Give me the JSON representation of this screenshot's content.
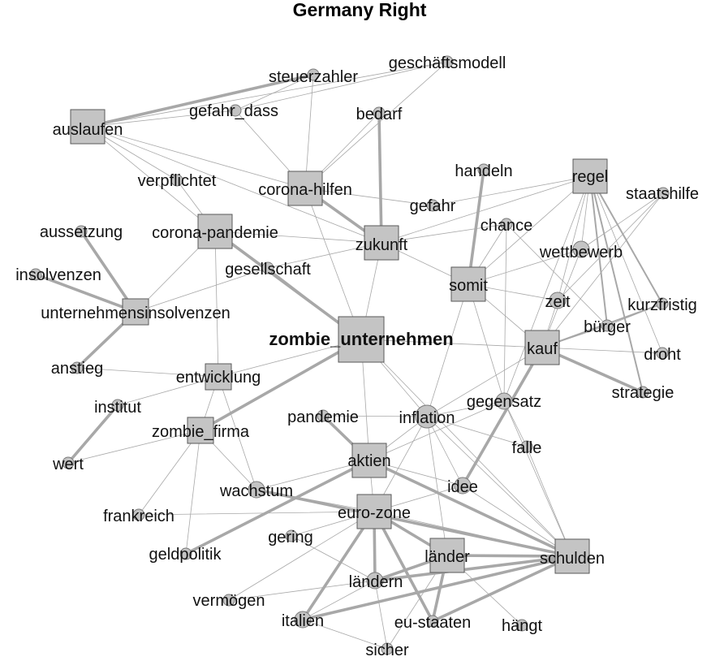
{
  "title": "Germany Right",
  "nodes": [
    {
      "id": "zombie_unternehmen",
      "label": "zombie_unternehmen",
      "shape": "square",
      "weight": 3,
      "emphasis": true
    },
    {
      "id": "auslaufen",
      "label": "auslaufen",
      "shape": "square",
      "weight": 2
    },
    {
      "id": "corona-hilfen",
      "label": "corona-hilfen",
      "shape": "square",
      "weight": 2
    },
    {
      "id": "corona-pandemie",
      "label": "corona-pandemie",
      "shape": "square",
      "weight": 2
    },
    {
      "id": "zukunft",
      "label": "zukunft",
      "shape": "square",
      "weight": 2
    },
    {
      "id": "somit",
      "label": "somit",
      "shape": "square",
      "weight": 2
    },
    {
      "id": "regel",
      "label": "regel",
      "shape": "square",
      "weight": 2
    },
    {
      "id": "kauf",
      "label": "kauf",
      "shape": "square",
      "weight": 2
    },
    {
      "id": "entwicklung",
      "label": "entwicklung",
      "shape": "square",
      "weight": 1
    },
    {
      "id": "zombie_firma",
      "label": "zombie_firma",
      "shape": "square",
      "weight": 1
    },
    {
      "id": "unternehmensinsolvenzen",
      "label": "unternehmensinsolvenzen",
      "shape": "square",
      "weight": 1
    },
    {
      "id": "aktien",
      "label": "aktien",
      "shape": "square",
      "weight": 2
    },
    {
      "id": "euro-zone",
      "label": "euro-zone",
      "shape": "square",
      "weight": 2
    },
    {
      "id": "länder",
      "label": "länder",
      "shape": "square",
      "weight": 2
    },
    {
      "id": "schulden",
      "label": "schulden",
      "shape": "square",
      "weight": 2
    },
    {
      "id": "steuerzahler",
      "label": "steuerzahler",
      "shape": "circle",
      "weight": 1
    },
    {
      "id": "geschäftsmodell",
      "label": "geschäftsmodell",
      "shape": "circle",
      "weight": 1
    },
    {
      "id": "gefahr_dass",
      "label": "gefahr_dass",
      "shape": "circle",
      "weight": 1
    },
    {
      "id": "bedarf",
      "label": "bedarf",
      "shape": "circle",
      "weight": 1
    },
    {
      "id": "verpflichtet",
      "label": "verpflichtet",
      "shape": "circle",
      "weight": 1
    },
    {
      "id": "handeln",
      "label": "handeln",
      "shape": "circle",
      "weight": 1
    },
    {
      "id": "gefahr",
      "label": "gefahr",
      "shape": "circle",
      "weight": 1
    },
    {
      "id": "staatshilfe",
      "label": "staatshilfe",
      "shape": "circle",
      "weight": 1
    },
    {
      "id": "aussetzung",
      "label": "aussetzung",
      "shape": "circle",
      "weight": 1
    },
    {
      "id": "chance",
      "label": "chance",
      "shape": "circle",
      "weight": 1
    },
    {
      "id": "wettbewerb",
      "label": "wettbewerb",
      "shape": "circle",
      "weight": 2
    },
    {
      "id": "insolvenzen",
      "label": "insolvenzen",
      "shape": "circle",
      "weight": 1
    },
    {
      "id": "gesellschaft",
      "label": "gesellschaft",
      "shape": "circle",
      "weight": 1
    },
    {
      "id": "zeit",
      "label": "zeit",
      "shape": "circle",
      "weight": 2
    },
    {
      "id": "kurzfristig",
      "label": "kurzfristig",
      "shape": "circle",
      "weight": 1
    },
    {
      "id": "bürger",
      "label": "bürger",
      "shape": "circle",
      "weight": 1
    },
    {
      "id": "droht",
      "label": "droht",
      "shape": "circle",
      "weight": 1
    },
    {
      "id": "anstieg",
      "label": "anstieg",
      "shape": "circle",
      "weight": 1
    },
    {
      "id": "institut",
      "label": "institut",
      "shape": "circle",
      "weight": 1
    },
    {
      "id": "wert",
      "label": "wert",
      "shape": "circle",
      "weight": 1
    },
    {
      "id": "pandemie",
      "label": "pandemie",
      "shape": "circle",
      "weight": 1
    },
    {
      "id": "inflation",
      "label": "inflation",
      "shape": "circle",
      "weight": 3
    },
    {
      "id": "gegensatz",
      "label": "gegensatz",
      "shape": "circle",
      "weight": 2
    },
    {
      "id": "strategie",
      "label": "strategie",
      "shape": "circle",
      "weight": 1
    },
    {
      "id": "falle",
      "label": "falle",
      "shape": "circle",
      "weight": 1
    },
    {
      "id": "idee",
      "label": "idee",
      "shape": "circle",
      "weight": 2
    },
    {
      "id": "wachstum",
      "label": "wachstum",
      "shape": "circle",
      "weight": 2
    },
    {
      "id": "frankreich",
      "label": "frankreich",
      "shape": "circle",
      "weight": 1
    },
    {
      "id": "gering",
      "label": "gering",
      "shape": "circle",
      "weight": 1
    },
    {
      "id": "geldpolitik",
      "label": "geldpolitik",
      "shape": "circle",
      "weight": 1
    },
    {
      "id": "ländern",
      "label": "ländern",
      "shape": "circle",
      "weight": 2
    },
    {
      "id": "vermögen",
      "label": "vermögen",
      "shape": "circle",
      "weight": 1
    },
    {
      "id": "italien",
      "label": "italien",
      "shape": "circle",
      "weight": 2
    },
    {
      "id": "eu-staaten",
      "label": "eu-staaten",
      "shape": "circle",
      "weight": 1
    },
    {
      "id": "hängt",
      "label": "hängt",
      "shape": "circle",
      "weight": 1
    },
    {
      "id": "sicher",
      "label": "sicher",
      "shape": "circle",
      "weight": 1
    }
  ],
  "edges": [
    {
      "source": "auslaufen",
      "target": "steuerzahler",
      "weight": 3
    },
    {
      "source": "auslaufen",
      "target": "geschäftsmodell",
      "weight": 1
    },
    {
      "source": "auslaufen",
      "target": "gefahr_dass",
      "weight": 1
    },
    {
      "source": "auslaufen",
      "target": "verpflichtet",
      "weight": 1
    },
    {
      "source": "auslaufen",
      "target": "corona-hilfen",
      "weight": 1
    },
    {
      "source": "auslaufen",
      "target": "zukunft",
      "weight": 1
    },
    {
      "source": "auslaufen",
      "target": "corona-pandemie",
      "weight": 1
    },
    {
      "source": "steuerzahler",
      "target": "corona-hilfen",
      "weight": 1
    },
    {
      "source": "steuerzahler",
      "target": "gefahr_dass",
      "weight": 1
    },
    {
      "source": "geschäftsmodell",
      "target": "corona-hilfen",
      "weight": 1
    },
    {
      "source": "geschäftsmodell",
      "target": "gefahr_dass",
      "weight": 1
    },
    {
      "source": "gefahr_dass",
      "target": "corona-hilfen",
      "weight": 1
    },
    {
      "source": "bedarf",
      "target": "zukunft",
      "weight": 3
    },
    {
      "source": "bedarf",
      "target": "corona-hilfen",
      "weight": 1
    },
    {
      "source": "corona-hilfen",
      "target": "zukunft",
      "weight": 3
    },
    {
      "source": "corona-hilfen",
      "target": "zombie_unternehmen",
      "weight": 1
    },
    {
      "source": "corona-hilfen",
      "target": "gefahr",
      "weight": 1
    },
    {
      "source": "corona-pandemie",
      "target": "zombie_unternehmen",
      "weight": 3
    },
    {
      "source": "corona-pandemie",
      "target": "zukunft",
      "weight": 1
    },
    {
      "source": "corona-pandemie",
      "target": "unternehmensinsolvenzen",
      "weight": 1
    },
    {
      "source": "corona-pandemie",
      "target": "entwicklung",
      "weight": 1
    },
    {
      "source": "corona-pandemie",
      "target": "verpflichtet",
      "weight": 1
    },
    {
      "source": "aussetzung",
      "target": "unternehmensinsolvenzen",
      "weight": 3
    },
    {
      "source": "insolvenzen",
      "target": "unternehmensinsolvenzen",
      "weight": 3
    },
    {
      "source": "unternehmensinsolvenzen",
      "target": "anstieg",
      "weight": 3
    },
    {
      "source": "unternehmensinsolvenzen",
      "target": "gesellschaft",
      "weight": 1
    },
    {
      "source": "zukunft",
      "target": "zombie_unternehmen",
      "weight": 1
    },
    {
      "source": "zukunft",
      "target": "somit",
      "weight": 1
    },
    {
      "source": "zukunft",
      "target": "regel",
      "weight": 1
    },
    {
      "source": "zukunft",
      "target": "gesellschaft",
      "weight": 1
    },
    {
      "source": "zukunft",
      "target": "chance",
      "weight": 1
    },
    {
      "source": "handeln",
      "target": "somit",
      "weight": 3
    },
    {
      "source": "gefahr",
      "target": "regel",
      "weight": 1
    },
    {
      "source": "regel",
      "target": "wettbewerb",
      "weight": 1
    },
    {
      "source": "regel",
      "target": "zeit",
      "weight": 1
    },
    {
      "source": "regel",
      "target": "kurzfristig",
      "weight": 2
    },
    {
      "source": "regel",
      "target": "bürger",
      "weight": 2
    },
    {
      "source": "regel",
      "target": "droht",
      "weight": 1
    },
    {
      "source": "regel",
      "target": "strategie",
      "weight": 2
    },
    {
      "source": "regel",
      "target": "gegensatz",
      "weight": 1
    },
    {
      "source": "regel",
      "target": "somit",
      "weight": 1
    },
    {
      "source": "staatshilfe",
      "target": "kauf",
      "weight": 1
    },
    {
      "source": "staatshilfe",
      "target": "zeit",
      "weight": 1
    },
    {
      "source": "staatshilfe",
      "target": "wettbewerb",
      "weight": 1
    },
    {
      "source": "chance",
      "target": "somit",
      "weight": 1
    },
    {
      "source": "chance",
      "target": "gegensatz",
      "weight": 1
    },
    {
      "source": "chance",
      "target": "bürger",
      "weight": 1
    },
    {
      "source": "somit",
      "target": "zeit",
      "weight": 1
    },
    {
      "source": "somit",
      "target": "kauf",
      "weight": 1
    },
    {
      "source": "somit",
      "target": "gegensatz",
      "weight": 1
    },
    {
      "source": "somit",
      "target": "inflation",
      "weight": 1
    },
    {
      "source": "somit",
      "target": "wettbewerb",
      "weight": 1
    },
    {
      "source": "wettbewerb",
      "target": "kauf",
      "weight": 1
    },
    {
      "source": "zeit",
      "target": "kauf",
      "weight": 1
    },
    {
      "source": "kurzfristig",
      "target": "kauf",
      "weight": 2
    },
    {
      "source": "kurzfristig",
      "target": "bürger",
      "weight": 1
    },
    {
      "source": "bürger",
      "target": "kauf",
      "weight": 1
    },
    {
      "source": "kauf",
      "target": "droht",
      "weight": 1
    },
    {
      "source": "kauf",
      "target": "strategie",
      "weight": 3
    },
    {
      "source": "kauf",
      "target": "idee",
      "weight": 3
    },
    {
      "source": "kauf",
      "target": "zombie_unternehmen",
      "weight": 1
    },
    {
      "source": "kauf",
      "target": "inflation",
      "weight": 1
    },
    {
      "source": "gegensatz",
      "target": "inflation",
      "weight": 1
    },
    {
      "source": "gegensatz",
      "target": "falle",
      "weight": 1
    },
    {
      "source": "gegensatz",
      "target": "schulden",
      "weight": 1
    },
    {
      "source": "gegensatz",
      "target": "aktien",
      "weight": 1
    },
    {
      "source": "zombie_unternehmen",
      "target": "zombie_firma",
      "weight": 3
    },
    {
      "source": "zombie_unternehmen",
      "target": "aktien",
      "weight": 1
    },
    {
      "source": "zombie_unternehmen",
      "target": "inflation",
      "weight": 1
    },
    {
      "source": "zombie_unternehmen",
      "target": "entwicklung",
      "weight": 1
    },
    {
      "source": "zombie_unternehmen",
      "target": "schulden",
      "weight": 1
    },
    {
      "source": "gesellschaft",
      "target": "zombie_unternehmen",
      "weight": 1
    },
    {
      "source": "entwicklung",
      "target": "anstieg",
      "weight": 1
    },
    {
      "source": "entwicklung",
      "target": "institut",
      "weight": 1
    },
    {
      "source": "entwicklung",
      "target": "wachstum",
      "weight": 1
    },
    {
      "source": "entwicklung",
      "target": "zombie_firma",
      "weight": 1
    },
    {
      "source": "institut",
      "target": "wert",
      "weight": 3
    },
    {
      "source": "wert",
      "target": "zombie_firma",
      "weight": 1
    },
    {
      "source": "zombie_firma",
      "target": "frankreich",
      "weight": 1
    },
    {
      "source": "zombie_firma",
      "target": "geldpolitik",
      "weight": 1
    },
    {
      "source": "zombie_firma",
      "target": "wachstum",
      "weight": 1
    },
    {
      "source": "pandemie",
      "target": "aktien",
      "weight": 3
    },
    {
      "source": "inflation",
      "target": "aktien",
      "weight": 1
    },
    {
      "source": "inflation",
      "target": "euro-zone",
      "weight": 1
    },
    {
      "source": "inflation",
      "target": "länder",
      "weight": 1
    },
    {
      "source": "inflation",
      "target": "schulden",
      "weight": 1
    },
    {
      "source": "inflation",
      "target": "falle",
      "weight": 1
    },
    {
      "source": "inflation",
      "target": "idee",
      "weight": 1
    },
    {
      "source": "aktien",
      "target": "wachstum",
      "weight": 1
    },
    {
      "source": "aktien",
      "target": "euro-zone",
      "weight": 1
    },
    {
      "source": "aktien",
      "target": "schulden",
      "weight": 3
    },
    {
      "source": "aktien",
      "target": "geldpolitik",
      "weight": 3
    },
    {
      "source": "aktien",
      "target": "idee",
      "weight": 1
    },
    {
      "source": "idee",
      "target": "euro-zone",
      "weight": 1
    },
    {
      "source": "idee",
      "target": "schulden",
      "weight": 1
    },
    {
      "source": "wachstum",
      "target": "euro-zone",
      "weight": 1
    },
    {
      "source": "wachstum",
      "target": "schulden",
      "weight": 3
    },
    {
      "source": "frankreich",
      "target": "euro-zone",
      "weight": 1
    },
    {
      "source": "gering",
      "target": "euro-zone",
      "weight": 1
    },
    {
      "source": "gering",
      "target": "ländern",
      "weight": 1
    },
    {
      "source": "euro-zone",
      "target": "ländern",
      "weight": 3
    },
    {
      "source": "euro-zone",
      "target": "italien",
      "weight": 3
    },
    {
      "source": "euro-zone",
      "target": "eu-staaten",
      "weight": 3
    },
    {
      "source": "euro-zone",
      "target": "länder",
      "weight": 3
    },
    {
      "source": "euro-zone",
      "target": "schulden",
      "weight": 1
    },
    {
      "source": "euro-zone",
      "target": "vermögen",
      "weight": 1
    },
    {
      "source": "länder",
      "target": "ländern",
      "weight": 3
    },
    {
      "source": "länder",
      "target": "eu-staaten",
      "weight": 3
    },
    {
      "source": "länder",
      "target": "hängt",
      "weight": 1
    },
    {
      "source": "länder",
      "target": "schulden",
      "weight": 3
    },
    {
      "source": "länder",
      "target": "sicher",
      "weight": 1
    },
    {
      "source": "schulden",
      "target": "ländern",
      "weight": 3
    },
    {
      "source": "schulden",
      "target": "italien",
      "weight": 3
    },
    {
      "source": "schulden",
      "target": "eu-staaten",
      "weight": 3
    },
    {
      "source": "schulden",
      "target": "falle",
      "weight": 1
    },
    {
      "source": "ländern",
      "target": "italien",
      "weight": 1
    },
    {
      "source": "ländern",
      "target": "vermögen",
      "weight": 1
    },
    {
      "source": "ländern",
      "target": "sicher",
      "weight": 1
    },
    {
      "source": "italien",
      "target": "sicher",
      "weight": 1
    },
    {
      "source": "pandemie",
      "target": "inflation",
      "weight": 1
    }
  ]
}
